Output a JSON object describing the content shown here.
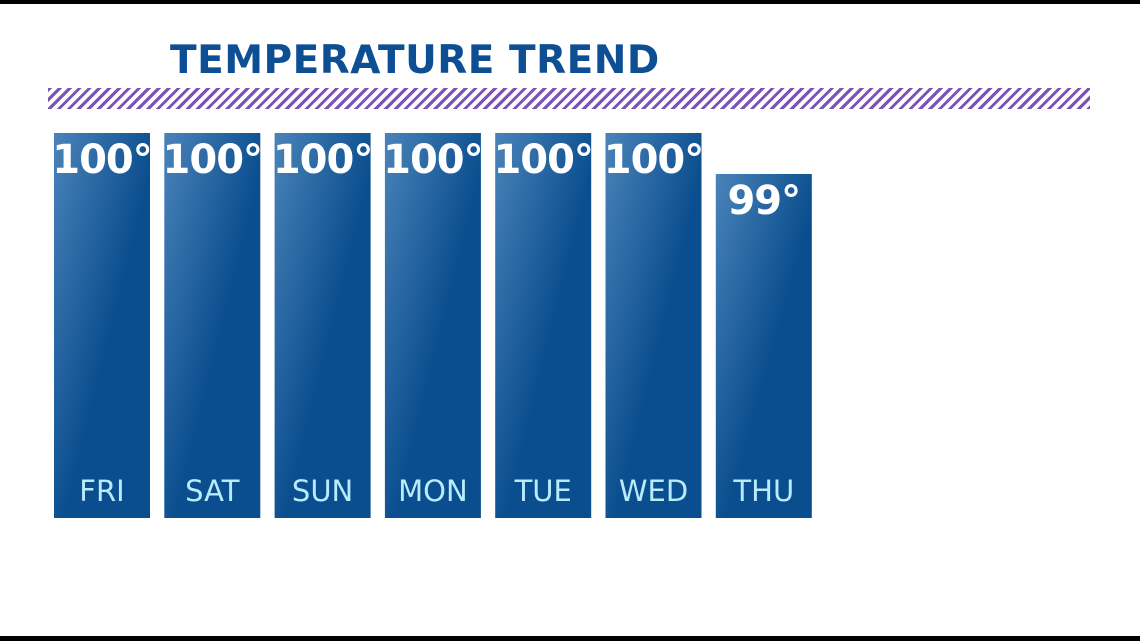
{
  "title": "TEMPERATURE TREND",
  "colors": {
    "title": "#0e4f94",
    "stripe": "#7a52b8",
    "bar_top": "#4a83b9",
    "bar_bottom": "#0b4e8f",
    "value_text": "#ffffff",
    "category_text": "#b8ecfb",
    "frame": "#000000"
  },
  "chart_data": {
    "type": "bar",
    "title": "TEMPERATURE TREND",
    "categories": [
      "FRI",
      "SAT",
      "SUN",
      "MON",
      "TUE",
      "WED",
      "THU"
    ],
    "values": [
      100,
      100,
      100,
      100,
      100,
      100,
      99
    ],
    "value_labels": [
      "100°",
      "100°",
      "100°",
      "100°",
      "100°",
      "100°",
      "99°"
    ],
    "unit": "°",
    "xlabel": "",
    "ylabel": "",
    "ylim": [
      0,
      100
    ],
    "grid": false,
    "legend": "none"
  }
}
